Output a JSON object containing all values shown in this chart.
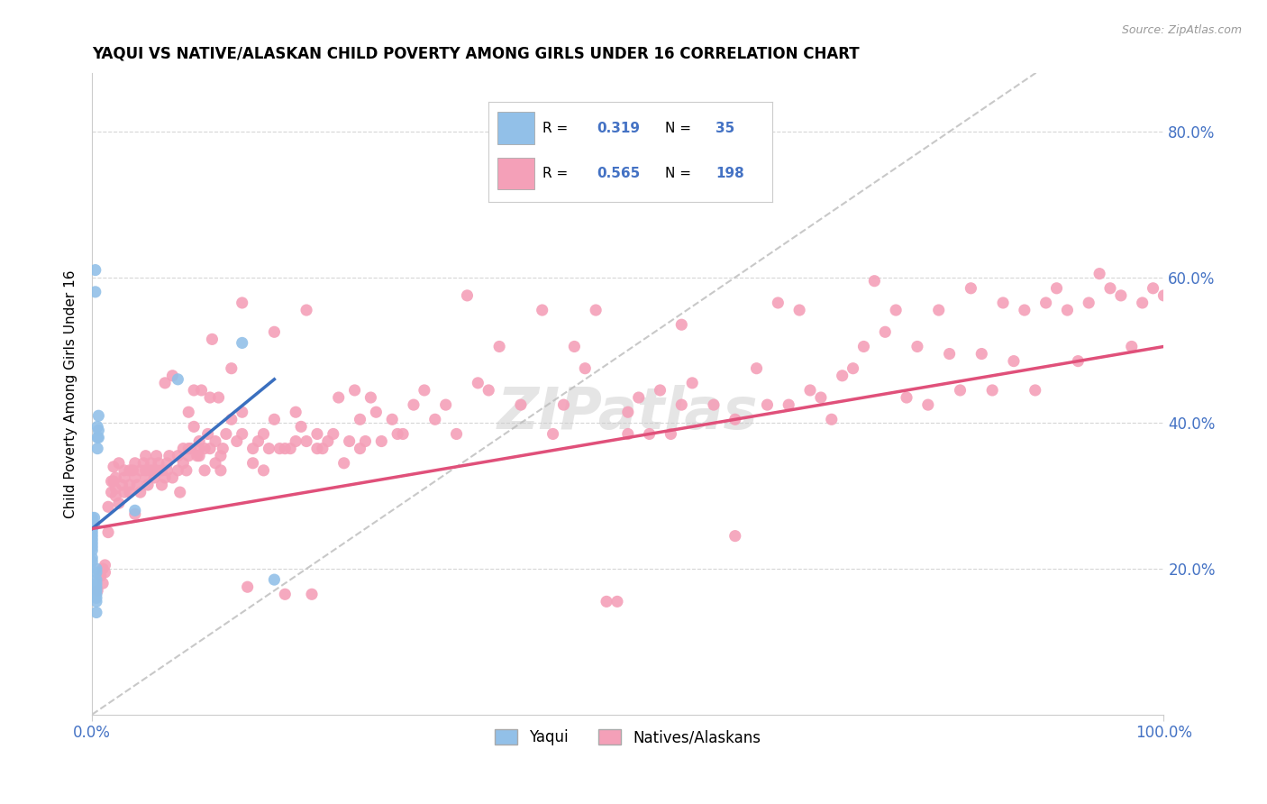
{
  "title": "YAQUI VS NATIVE/ALASKAN CHILD POVERTY AMONG GIRLS UNDER 16 CORRELATION CHART",
  "source": "Source: ZipAtlas.com",
  "ylabel": "Child Poverty Among Girls Under 16",
  "xlim": [
    0.0,
    1.0
  ],
  "ylim": [
    0.0,
    0.88
  ],
  "xtick_labels": [
    "0.0%",
    "100.0%"
  ],
  "ytick_labels": [
    "20.0%",
    "40.0%",
    "60.0%",
    "80.0%"
  ],
  "ytick_vals": [
    0.2,
    0.4,
    0.6,
    0.8
  ],
  "watermark": "ZIPatlas",
  "blue_color": "#92C0E8",
  "pink_color": "#F4A0B8",
  "blue_line_color": "#3A6FBF",
  "pink_line_color": "#E0507A",
  "dashed_line_color": "#BBBBBB",
  "tick_label_color": "#4472C4",
  "yaqui_points": [
    [
      0.0,
      0.27
    ],
    [
      0.0,
      0.265
    ],
    [
      0.0,
      0.26
    ],
    [
      0.0,
      0.255
    ],
    [
      0.0,
      0.25
    ],
    [
      0.0,
      0.245
    ],
    [
      0.0,
      0.24
    ],
    [
      0.0,
      0.235
    ],
    [
      0.0,
      0.23
    ],
    [
      0.0,
      0.225
    ],
    [
      0.0,
      0.215
    ],
    [
      0.0,
      0.21
    ],
    [
      0.002,
      0.27
    ],
    [
      0.002,
      0.26
    ],
    [
      0.003,
      0.61
    ],
    [
      0.003,
      0.58
    ],
    [
      0.004,
      0.2
    ],
    [
      0.004,
      0.195
    ],
    [
      0.004,
      0.185
    ],
    [
      0.004,
      0.18
    ],
    [
      0.004,
      0.175
    ],
    [
      0.004,
      0.17
    ],
    [
      0.004,
      0.165
    ],
    [
      0.004,
      0.16
    ],
    [
      0.004,
      0.155
    ],
    [
      0.004,
      0.14
    ],
    [
      0.005,
      0.395
    ],
    [
      0.005,
      0.38
    ],
    [
      0.005,
      0.365
    ],
    [
      0.006,
      0.41
    ],
    [
      0.006,
      0.39
    ],
    [
      0.006,
      0.38
    ],
    [
      0.04,
      0.28
    ],
    [
      0.08,
      0.46
    ],
    [
      0.14,
      0.51
    ],
    [
      0.17,
      0.185
    ]
  ],
  "native_points": [
    [
      0.005,
      0.17
    ],
    [
      0.008,
      0.19
    ],
    [
      0.01,
      0.2
    ],
    [
      0.01,
      0.18
    ],
    [
      0.012,
      0.195
    ],
    [
      0.012,
      0.205
    ],
    [
      0.015,
      0.25
    ],
    [
      0.015,
      0.285
    ],
    [
      0.018,
      0.32
    ],
    [
      0.018,
      0.305
    ],
    [
      0.02,
      0.34
    ],
    [
      0.02,
      0.32
    ],
    [
      0.022,
      0.31
    ],
    [
      0.022,
      0.3
    ],
    [
      0.022,
      0.325
    ],
    [
      0.025,
      0.29
    ],
    [
      0.025,
      0.345
    ],
    [
      0.028,
      0.315
    ],
    [
      0.03,
      0.335
    ],
    [
      0.03,
      0.305
    ],
    [
      0.03,
      0.325
    ],
    [
      0.035,
      0.335
    ],
    [
      0.035,
      0.315
    ],
    [
      0.035,
      0.305
    ],
    [
      0.038,
      0.335
    ],
    [
      0.04,
      0.325
    ],
    [
      0.04,
      0.345
    ],
    [
      0.04,
      0.275
    ],
    [
      0.042,
      0.315
    ],
    [
      0.045,
      0.305
    ],
    [
      0.045,
      0.335
    ],
    [
      0.048,
      0.345
    ],
    [
      0.05,
      0.355
    ],
    [
      0.05,
      0.325
    ],
    [
      0.05,
      0.335
    ],
    [
      0.052,
      0.315
    ],
    [
      0.055,
      0.345
    ],
    [
      0.055,
      0.335
    ],
    [
      0.058,
      0.325
    ],
    [
      0.06,
      0.355
    ],
    [
      0.06,
      0.335
    ],
    [
      0.062,
      0.345
    ],
    [
      0.065,
      0.315
    ],
    [
      0.065,
      0.335
    ],
    [
      0.068,
      0.455
    ],
    [
      0.068,
      0.325
    ],
    [
      0.07,
      0.345
    ],
    [
      0.07,
      0.335
    ],
    [
      0.072,
      0.355
    ],
    [
      0.075,
      0.465
    ],
    [
      0.075,
      0.325
    ],
    [
      0.08,
      0.335
    ],
    [
      0.08,
      0.355
    ],
    [
      0.082,
      0.305
    ],
    [
      0.085,
      0.365
    ],
    [
      0.085,
      0.345
    ],
    [
      0.088,
      0.335
    ],
    [
      0.09,
      0.415
    ],
    [
      0.09,
      0.365
    ],
    [
      0.09,
      0.355
    ],
    [
      0.092,
      0.365
    ],
    [
      0.095,
      0.395
    ],
    [
      0.095,
      0.445
    ],
    [
      0.098,
      0.355
    ],
    [
      0.1,
      0.365
    ],
    [
      0.1,
      0.375
    ],
    [
      0.1,
      0.355
    ],
    [
      0.102,
      0.445
    ],
    [
      0.105,
      0.365
    ],
    [
      0.105,
      0.335
    ],
    [
      0.108,
      0.385
    ],
    [
      0.11,
      0.435
    ],
    [
      0.11,
      0.365
    ],
    [
      0.112,
      0.515
    ],
    [
      0.115,
      0.345
    ],
    [
      0.115,
      0.375
    ],
    [
      0.118,
      0.435
    ],
    [
      0.12,
      0.355
    ],
    [
      0.12,
      0.335
    ],
    [
      0.122,
      0.365
    ],
    [
      0.125,
      0.385
    ],
    [
      0.13,
      0.475
    ],
    [
      0.13,
      0.405
    ],
    [
      0.135,
      0.375
    ],
    [
      0.14,
      0.385
    ],
    [
      0.14,
      0.415
    ],
    [
      0.14,
      0.565
    ],
    [
      0.145,
      0.175
    ],
    [
      0.15,
      0.345
    ],
    [
      0.15,
      0.365
    ],
    [
      0.155,
      0.375
    ],
    [
      0.16,
      0.385
    ],
    [
      0.16,
      0.335
    ],
    [
      0.165,
      0.365
    ],
    [
      0.17,
      0.525
    ],
    [
      0.17,
      0.405
    ],
    [
      0.175,
      0.365
    ],
    [
      0.18,
      0.165
    ],
    [
      0.18,
      0.365
    ],
    [
      0.185,
      0.365
    ],
    [
      0.19,
      0.415
    ],
    [
      0.19,
      0.375
    ],
    [
      0.195,
      0.395
    ],
    [
      0.2,
      0.555
    ],
    [
      0.2,
      0.375
    ],
    [
      0.205,
      0.165
    ],
    [
      0.21,
      0.385
    ],
    [
      0.21,
      0.365
    ],
    [
      0.215,
      0.365
    ],
    [
      0.22,
      0.375
    ],
    [
      0.225,
      0.385
    ],
    [
      0.23,
      0.435
    ],
    [
      0.235,
      0.345
    ],
    [
      0.24,
      0.375
    ],
    [
      0.245,
      0.445
    ],
    [
      0.25,
      0.405
    ],
    [
      0.25,
      0.365
    ],
    [
      0.255,
      0.375
    ],
    [
      0.26,
      0.435
    ],
    [
      0.265,
      0.415
    ],
    [
      0.27,
      0.375
    ],
    [
      0.28,
      0.405
    ],
    [
      0.285,
      0.385
    ],
    [
      0.29,
      0.385
    ],
    [
      0.3,
      0.425
    ],
    [
      0.31,
      0.445
    ],
    [
      0.32,
      0.405
    ],
    [
      0.33,
      0.425
    ],
    [
      0.34,
      0.385
    ],
    [
      0.35,
      0.575
    ],
    [
      0.36,
      0.455
    ],
    [
      0.37,
      0.445
    ],
    [
      0.38,
      0.505
    ],
    [
      0.4,
      0.425
    ],
    [
      0.42,
      0.555
    ],
    [
      0.43,
      0.385
    ],
    [
      0.44,
      0.425
    ],
    [
      0.45,
      0.505
    ],
    [
      0.46,
      0.475
    ],
    [
      0.47,
      0.555
    ],
    [
      0.48,
      0.155
    ],
    [
      0.49,
      0.155
    ],
    [
      0.5,
      0.385
    ],
    [
      0.5,
      0.415
    ],
    [
      0.51,
      0.435
    ],
    [
      0.52,
      0.385
    ],
    [
      0.53,
      0.445
    ],
    [
      0.54,
      0.385
    ],
    [
      0.55,
      0.425
    ],
    [
      0.55,
      0.535
    ],
    [
      0.56,
      0.455
    ],
    [
      0.58,
      0.425
    ],
    [
      0.6,
      0.405
    ],
    [
      0.6,
      0.245
    ],
    [
      0.62,
      0.475
    ],
    [
      0.63,
      0.425
    ],
    [
      0.64,
      0.565
    ],
    [
      0.65,
      0.425
    ],
    [
      0.66,
      0.555
    ],
    [
      0.67,
      0.445
    ],
    [
      0.68,
      0.435
    ],
    [
      0.69,
      0.405
    ],
    [
      0.7,
      0.465
    ],
    [
      0.71,
      0.475
    ],
    [
      0.72,
      0.505
    ],
    [
      0.73,
      0.595
    ],
    [
      0.74,
      0.525
    ],
    [
      0.75,
      0.555
    ],
    [
      0.76,
      0.435
    ],
    [
      0.77,
      0.505
    ],
    [
      0.78,
      0.425
    ],
    [
      0.79,
      0.555
    ],
    [
      0.8,
      0.495
    ],
    [
      0.81,
      0.445
    ],
    [
      0.82,
      0.585
    ],
    [
      0.83,
      0.495
    ],
    [
      0.84,
      0.445
    ],
    [
      0.85,
      0.565
    ],
    [
      0.86,
      0.485
    ],
    [
      0.87,
      0.555
    ],
    [
      0.88,
      0.445
    ],
    [
      0.89,
      0.565
    ],
    [
      0.9,
      0.585
    ],
    [
      0.91,
      0.555
    ],
    [
      0.92,
      0.485
    ],
    [
      0.93,
      0.565
    ],
    [
      0.94,
      0.605
    ],
    [
      0.95,
      0.585
    ],
    [
      0.96,
      0.575
    ],
    [
      0.97,
      0.505
    ],
    [
      0.98,
      0.565
    ],
    [
      0.99,
      0.585
    ],
    [
      1.0,
      0.575
    ]
  ],
  "blue_line_x": [
    0.0,
    0.17
  ],
  "blue_line_y": [
    0.255,
    0.46
  ],
  "pink_line_x": [
    0.0,
    1.0
  ],
  "pink_line_y": [
    0.255,
    0.505
  ]
}
